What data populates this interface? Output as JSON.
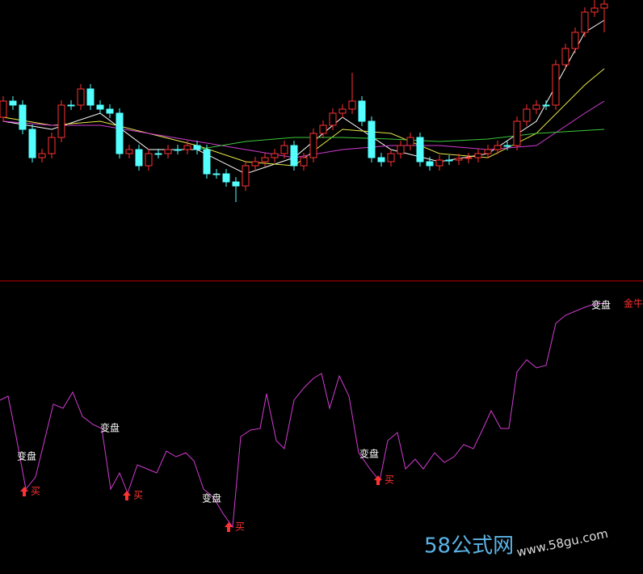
{
  "chart_data": [
    {
      "type": "candlestick",
      "ylim": [
        0,
        345
      ],
      "up_color": "#ff3232",
      "down_color": "#54ffff",
      "open": [
        200,
        220,
        215,
        185,
        150,
        155,
        175,
        215,
        215,
        235,
        215,
        210,
        205,
        155,
        160,
        140,
        155,
        155,
        160,
        160,
        165,
        160,
        130,
        130,
        120,
        115,
        140,
        145,
        150,
        155,
        165,
        140,
        150,
        180,
        190,
        205,
        210,
        220,
        195,
        150,
        145,
        155,
        165,
        175,
        145,
        140,
        147,
        147,
        149,
        150,
        155,
        160,
        165,
        165,
        195,
        210,
        215,
        215,
        265,
        285,
        305,
        330,
        335
      ],
      "high": [
        226,
        226,
        221,
        191,
        161,
        181,
        221,
        221,
        241,
        241,
        221,
        216,
        211,
        166,
        166,
        161,
        161,
        166,
        166,
        171,
        171,
        166,
        136,
        136,
        126,
        146,
        151,
        156,
        161,
        171,
        171,
        156,
        186,
        196,
        211,
        216,
        255,
        226,
        201,
        156,
        161,
        171,
        181,
        181,
        151,
        153,
        153,
        155,
        156,
        161,
        166,
        171,
        171,
        201,
        216,
        221,
        221,
        271,
        291,
        311,
        336,
        345,
        345
      ],
      "low": [
        194,
        209,
        179,
        144,
        144,
        149,
        169,
        209,
        209,
        209,
        204,
        199,
        149,
        149,
        134,
        134,
        149,
        149,
        154,
        154,
        154,
        124,
        124,
        114,
        95,
        109,
        134,
        139,
        144,
        149,
        134,
        134,
        144,
        174,
        184,
        199,
        204,
        189,
        144,
        139,
        139,
        149,
        159,
        139,
        134,
        134,
        141,
        141,
        143,
        144,
        149,
        154,
        159,
        159,
        189,
        204,
        209,
        209,
        259,
        279,
        299,
        324,
        305
      ],
      "close": [
        220,
        215,
        185,
        150,
        155,
        175,
        215,
        215,
        235,
        215,
        210,
        205,
        155,
        160,
        140,
        155,
        155,
        160,
        160,
        165,
        160,
        130,
        130,
        120,
        115,
        140,
        145,
        150,
        155,
        165,
        140,
        150,
        180,
        190,
        205,
        210,
        220,
        195,
        150,
        145,
        155,
        165,
        175,
        145,
        140,
        147,
        147,
        149,
        150,
        155,
        160,
        165,
        165,
        195,
        210,
        215,
        215,
        265,
        285,
        305,
        330,
        335,
        340
      ],
      "series": [
        {
          "color": "#ffffff",
          "x": [
            0,
            5,
            10,
            15,
            20,
            25,
            30,
            35,
            40,
            45,
            50,
            55,
            60,
            62
          ],
          "values": [
            195,
            185,
            205,
            160,
            160,
            130,
            150,
            200,
            160,
            145,
            155,
            195,
            305,
            320
          ]
        },
        {
          "color": "#e8e84a",
          "x": [
            0,
            5,
            10,
            15,
            20,
            25,
            30,
            35,
            40,
            45,
            50,
            55,
            60,
            62
          ],
          "values": [
            200,
            190,
            195,
            180,
            165,
            145,
            140,
            185,
            180,
            155,
            150,
            180,
            240,
            260
          ]
        },
        {
          "color": "#d23cd2",
          "x": [
            0,
            5,
            10,
            15,
            20,
            25,
            30,
            35,
            40,
            45,
            50,
            55,
            60,
            62
          ],
          "values": [
            195,
            190,
            190,
            180,
            170,
            160,
            150,
            160,
            165,
            165,
            160,
            165,
            205,
            220
          ]
        },
        {
          "color": "#3cc83c",
          "x": [
            20,
            25,
            30,
            35,
            40,
            45,
            50,
            55,
            62
          ],
          "values": [
            160,
            170,
            175,
            175,
            173,
            170,
            173,
            180,
            185
          ]
        }
      ]
    },
    {
      "type": "line",
      "xlim": [
        0,
        796
      ],
      "ylim": [
        0,
        360
      ],
      "color": "#d23cd2",
      "x": [
        0,
        10,
        20,
        32,
        44,
        55,
        66,
        78,
        90,
        102,
        115,
        126,
        137,
        148,
        158,
        170,
        182,
        194,
        206,
        218,
        230,
        240,
        252,
        264,
        276,
        288,
        298,
        310,
        322,
        330,
        342,
        352,
        364,
        376,
        388,
        398,
        408,
        420,
        432,
        444,
        458,
        470,
        480,
        492,
        502,
        514,
        524,
        538,
        550,
        562,
        574,
        586,
        598,
        608,
        620,
        630,
        640,
        652,
        664,
        676,
        688,
        700,
        712,
        724,
        736,
        750
      ],
      "values": [
        215,
        220,
        170,
        105,
        120,
        165,
        210,
        205,
        225,
        195,
        185,
        180,
        105,
        125,
        100,
        135,
        130,
        125,
        152,
        145,
        150,
        140,
        105,
        95,
        75,
        58,
        170,
        178,
        180,
        223,
        165,
        155,
        215,
        230,
        242,
        248,
        205,
        245,
        220,
        150,
        130,
        115,
        165,
        175,
        130,
        142,
        130,
        150,
        138,
        145,
        160,
        155,
        180,
        202,
        180,
        180,
        250,
        265,
        255,
        258,
        310,
        320,
        325,
        330,
        334,
        335
      ],
      "annotations": [
        "变盘",
        "变盘",
        "变盘",
        "变盘",
        "变盘",
        "买",
        "买",
        "买",
        "买",
        "金牛"
      ]
    }
  ],
  "watermark": {
    "brand": "58公式网",
    "url": "www.58gu.com"
  }
}
